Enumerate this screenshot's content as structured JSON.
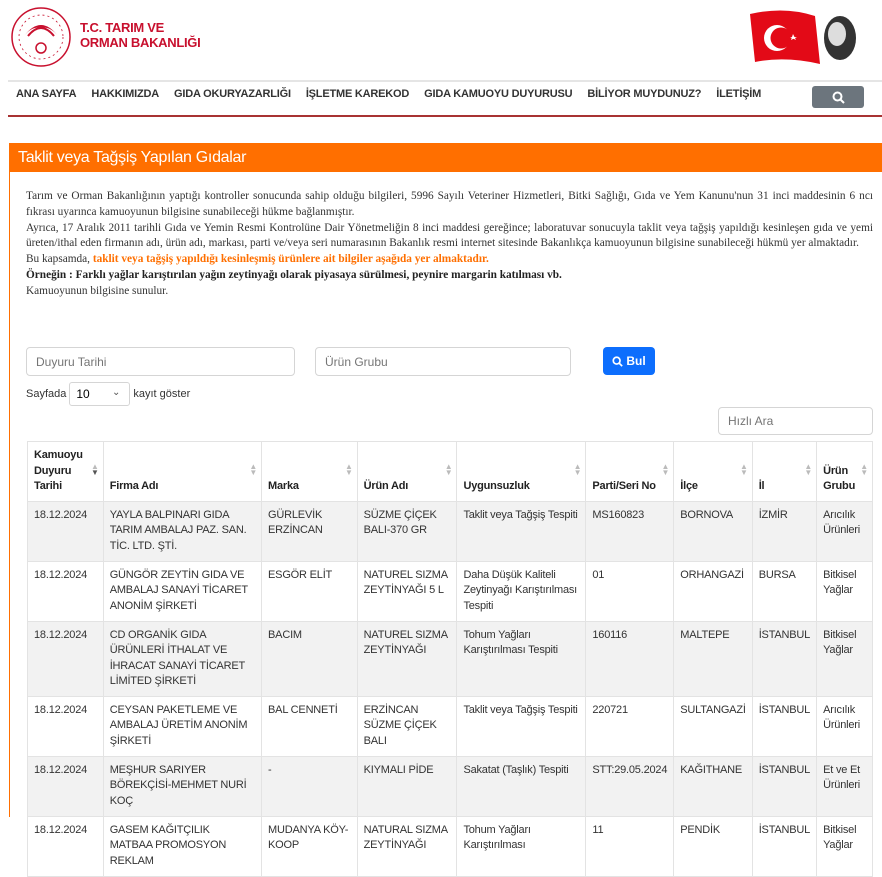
{
  "header": {
    "brand_line1": "T.C. TARIM VE",
    "brand_line2": "ORMAN BAKANLIĞI",
    "brand_color": "#c8102e"
  },
  "nav": {
    "items": [
      "ANA SAYFA",
      "HAKKIMIZDA",
      "GIDA OKURYAZARLIĞI",
      "İŞLETME KAREKOD",
      "GIDA KAMUOYU DUYURUSU",
      "BİLİYOR MUYDUNUZ?",
      "İLETİŞİM"
    ],
    "search_icon": "search-icon"
  },
  "panel": {
    "title": "Taklit veya Tağşiş Yapılan Gıdalar",
    "accent": "#ff6f00",
    "p1": "Tarım ve Orman Bakanlığının yaptığı kontroller sonucunda sahip olduğu bilgileri, 5996 Sayılı Veteriner Hizmetleri, Bitki Sağlığı, Gıda ve Yem Kanunu'nun 31 inci maddesinin 6 ncı fıkrası uyarınca kamuoyunun bilgisine sunabileceği hükme bağlanmıştır.",
    "p2": "Ayrıca, 17 Aralık 2011 tarihli Gıda ve Yemin Resmi Kontrolüne Dair Yönetmeliğin 8 inci maddesi gereğince; laboratuvar sonucuyla taklit veya tağşiş yapıldığı kesinleşen gıda ve yemi üreten/ithal eden firmanın adı, ürün adı, markası, parti ve/veya seri numarasının Bakanlık resmi internet sitesinde Bakanlıkça kamuoyunun bilgisine sunabileceği hükmü yer almaktadır.",
    "p3_prefix": "Bu kapsamda, ",
    "p3_highlight": "taklit veya tağşiş yapıldığı kesinleşmiş ürünlere ait bilgiler aşağıda yer almaktadır.",
    "p4": "Örneğin : Farklı yağlar karıştırılan yağın zeytinyağı olarak piyasaya sürülmesi, peynire margarin katılması vb.",
    "p5": "Kamuoyunun bilgisine sunulur."
  },
  "filters": {
    "date_placeholder": "Duyuru Tarihi",
    "group_placeholder": "Ürün Grubu",
    "search_label": "Bul",
    "page_prefix": "Sayfada",
    "page_size": "10",
    "page_suffix": "kayıt göster",
    "quick_placeholder": "Hızlı Ara"
  },
  "table": {
    "columns": [
      "Kamuoyu Duyuru Tarihi",
      "Firma Adı",
      "Marka",
      "Ürün Adı",
      "Uygunsuzluk",
      "Parti/Seri No",
      "İlçe",
      "İl",
      "Ürün Grubu"
    ],
    "rows": [
      [
        "18.12.2024",
        "YAYLA BALPINARI GIDA TARIM AMBALAJ PAZ. SAN. TİC. LTD. ŞTİ.",
        "GÜRLEVİK ERZİNCAN",
        "SÜZME ÇİÇEK BALI-370 GR",
        "Taklit veya Tağşiş Tespiti",
        "MS160823",
        "BORNOVA",
        "İZMİR",
        "Arıcılık Ürünleri"
      ],
      [
        "18.12.2024",
        "GÜNGÖR ZEYTİN GIDA VE AMBALAJ SANAYİ TİCARET ANONİM ŞİRKETİ",
        "ESGÖR ELİT",
        "NATUREL SIZMA ZEYTİNYAĞI 5 L",
        "Daha Düşük Kaliteli Zeytinyağı Karıştırılması Tespiti",
        "01",
        "ORHANGAZİ",
        "BURSA",
        "Bitkisel Yağlar"
      ],
      [
        "18.12.2024",
        "CD ORGANİK GIDA ÜRÜNLERİ İTHALAT VE İHRACAT SANAYİ TİCARET LİMİTED ŞİRKETİ",
        "BACIM",
        "NATUREL SIZMA ZEYTİNYAĞI",
        "Tohum Yağları Karıştırılması Tespiti",
        "160116",
        "MALTEPE",
        "İSTANBUL",
        "Bitkisel Yağlar"
      ],
      [
        "18.12.2024",
        "CEYSAN PAKETLEME VE AMBALAJ ÜRETİM ANONİM ŞİRKETİ",
        "BAL CENNETİ",
        "ERZİNCAN SÜZME ÇİÇEK BALI",
        "Taklit veya Tağşiş Tespiti",
        "220721",
        "SULTANGAZİ",
        "İSTANBUL",
        "Arıcılık Ürünleri"
      ],
      [
        "18.12.2024",
        "MEŞHUR SARIYER BÖREKÇİSİ-MEHMET NURİ KOÇ",
        "-",
        "KIYMALI PİDE",
        "Sakatat (Taşlık) Tespiti",
        "STT:29.05.2024",
        "KAĞITHANE",
        "İSTANBUL",
        "Et ve Et Ürünleri"
      ],
      [
        "18.12.2024",
        "GASEM KAĞITÇILIK MATBAA PROMOSYON REKLAM",
        "MUDANYA KÖY-KOOP",
        "NATURAL SIZMA ZEYTİNYAĞI",
        "Tohum Yağları Karıştırılması",
        "11",
        "PENDİK",
        "İSTANBUL",
        "Bitkisel Yağlar"
      ]
    ]
  }
}
